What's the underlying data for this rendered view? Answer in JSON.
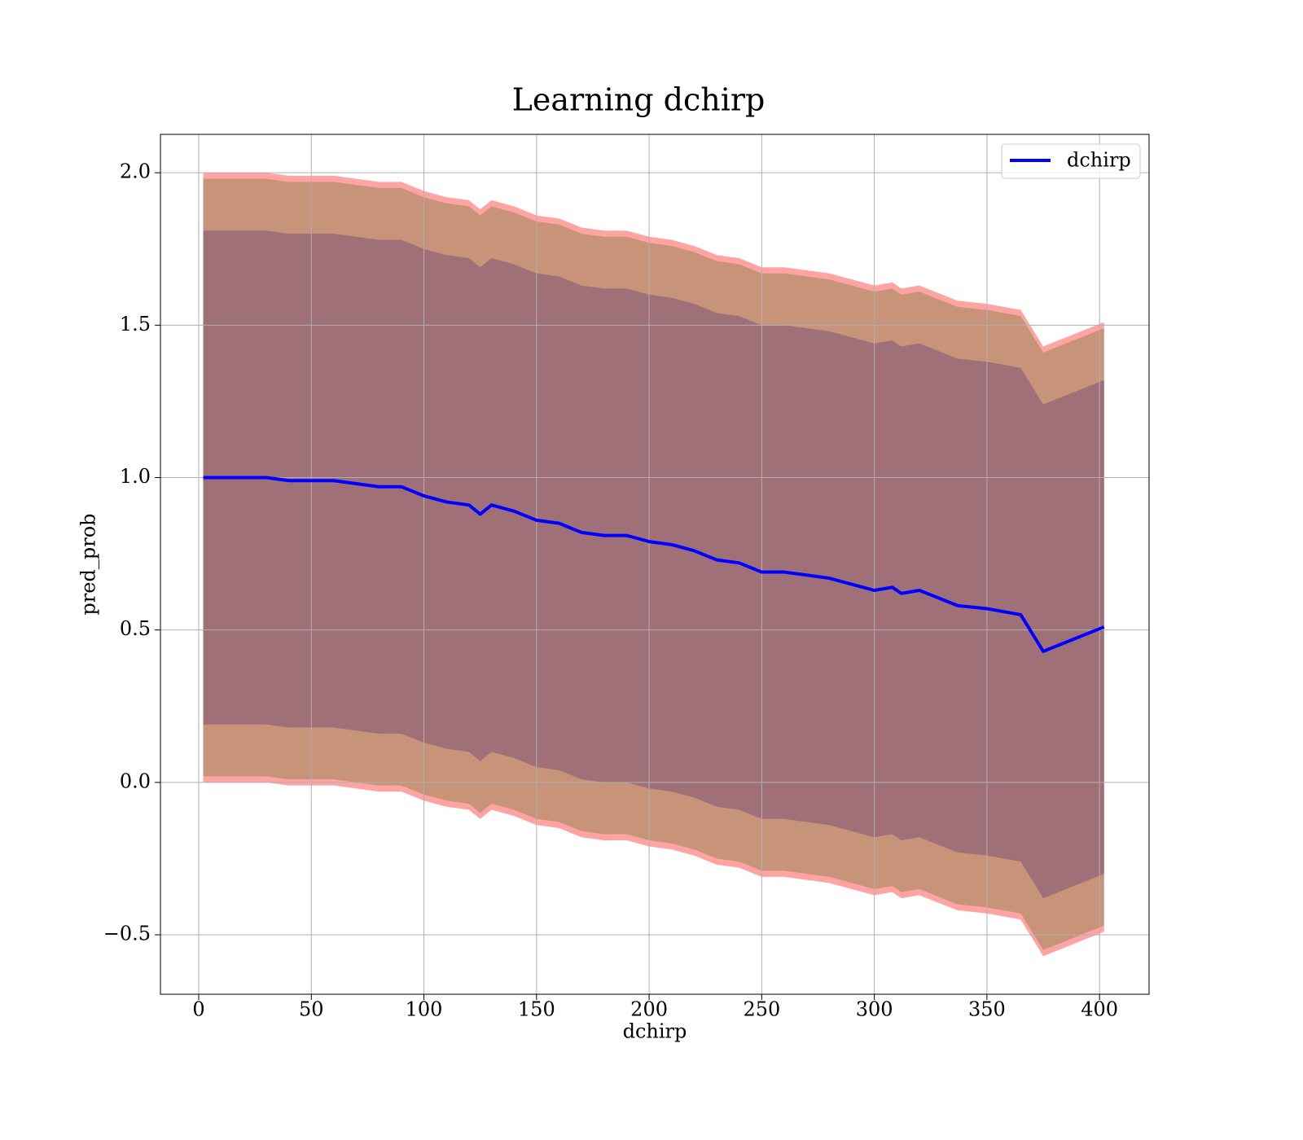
{
  "chart_data": {
    "type": "line",
    "title": "Learning dchirp",
    "xlabel": "dchirp",
    "ylabel": "pred_prob",
    "x": [
      2,
      10,
      20,
      30,
      40,
      50,
      60,
      70,
      80,
      90,
      100,
      110,
      120,
      125,
      130,
      140,
      150,
      160,
      170,
      180,
      190,
      200,
      210,
      220,
      230,
      240,
      250,
      260,
      270,
      280,
      290,
      300,
      308,
      312,
      320,
      337,
      350,
      365,
      375,
      402
    ],
    "series": [
      {
        "name": "dchirp",
        "color": "#0000ff",
        "values": [
          1.0,
          1.0,
          1.0,
          1.0,
          0.99,
          0.99,
          0.99,
          0.98,
          0.97,
          0.97,
          0.94,
          0.92,
          0.91,
          0.88,
          0.91,
          0.89,
          0.86,
          0.85,
          0.82,
          0.81,
          0.81,
          0.79,
          0.78,
          0.76,
          0.73,
          0.72,
          0.69,
          0.69,
          0.68,
          0.67,
          0.65,
          0.63,
          0.64,
          0.62,
          0.63,
          0.58,
          0.57,
          0.55,
          0.43,
          0.51
        ]
      }
    ],
    "bands": [
      {
        "color": "#ffa3a3",
        "upper": [
          2.0,
          2.0,
          2.0,
          2.0,
          1.99,
          1.99,
          1.99,
          1.98,
          1.97,
          1.97,
          1.94,
          1.92,
          1.91,
          1.88,
          1.91,
          1.89,
          1.86,
          1.85,
          1.82,
          1.81,
          1.81,
          1.79,
          1.78,
          1.76,
          1.73,
          1.72,
          1.69,
          1.69,
          1.68,
          1.67,
          1.65,
          1.63,
          1.64,
          1.62,
          1.63,
          1.58,
          1.57,
          1.55,
          1.43,
          1.51
        ],
        "lower": [
          0.0,
          0.0,
          0.0,
          0.0,
          -0.01,
          -0.01,
          -0.01,
          -0.02,
          -0.03,
          -0.03,
          -0.06,
          -0.08,
          -0.09,
          -0.12,
          -0.09,
          -0.11,
          -0.14,
          -0.15,
          -0.18,
          -0.19,
          -0.19,
          -0.21,
          -0.22,
          -0.24,
          -0.27,
          -0.28,
          -0.31,
          -0.31,
          -0.32,
          -0.33,
          -0.35,
          -0.37,
          -0.36,
          -0.38,
          -0.37,
          -0.42,
          -0.43,
          -0.45,
          -0.57,
          -0.49
        ]
      },
      {
        "color": "#c79479",
        "upper": [
          1.98,
          1.98,
          1.98,
          1.98,
          1.97,
          1.97,
          1.97,
          1.96,
          1.95,
          1.95,
          1.92,
          1.9,
          1.89,
          1.86,
          1.89,
          1.87,
          1.84,
          1.83,
          1.8,
          1.79,
          1.79,
          1.77,
          1.76,
          1.74,
          1.71,
          1.7,
          1.67,
          1.67,
          1.66,
          1.65,
          1.63,
          1.61,
          1.62,
          1.6,
          1.61,
          1.56,
          1.55,
          1.53,
          1.41,
          1.49
        ],
        "lower": [
          0.02,
          0.02,
          0.02,
          0.02,
          0.01,
          0.01,
          0.01,
          0.0,
          -0.01,
          -0.01,
          -0.04,
          -0.06,
          -0.07,
          -0.1,
          -0.07,
          -0.09,
          -0.12,
          -0.13,
          -0.16,
          -0.17,
          -0.17,
          -0.19,
          -0.2,
          -0.22,
          -0.25,
          -0.26,
          -0.29,
          -0.29,
          -0.3,
          -0.31,
          -0.33,
          -0.35,
          -0.34,
          -0.36,
          -0.35,
          -0.4,
          -0.41,
          -0.43,
          -0.55,
          -0.47
        ]
      },
      {
        "color": "#a07079",
        "upper": [
          1.81,
          1.81,
          1.81,
          1.81,
          1.8,
          1.8,
          1.8,
          1.79,
          1.78,
          1.78,
          1.75,
          1.73,
          1.72,
          1.69,
          1.72,
          1.7,
          1.67,
          1.66,
          1.63,
          1.62,
          1.62,
          1.6,
          1.59,
          1.57,
          1.54,
          1.53,
          1.5,
          1.5,
          1.49,
          1.48,
          1.46,
          1.44,
          1.45,
          1.43,
          1.44,
          1.39,
          1.38,
          1.36,
          1.24,
          1.32
        ],
        "lower": [
          0.19,
          0.19,
          0.19,
          0.19,
          0.18,
          0.18,
          0.18,
          0.17,
          0.16,
          0.16,
          0.13,
          0.11,
          0.1,
          0.07,
          0.1,
          0.08,
          0.05,
          0.04,
          0.01,
          0.0,
          0.0,
          -0.02,
          -0.03,
          -0.05,
          -0.08,
          -0.09,
          -0.12,
          -0.12,
          -0.13,
          -0.14,
          -0.16,
          -0.18,
          -0.17,
          -0.19,
          -0.18,
          -0.23,
          -0.24,
          -0.26,
          -0.38,
          -0.3
        ]
      }
    ],
    "xlim": [
      -17,
      422
    ],
    "ylim": [
      -0.695,
      2.126
    ],
    "xticks": [
      0,
      50,
      100,
      150,
      200,
      250,
      300,
      350,
      400
    ],
    "yticks": [
      {
        "value": -0.5,
        "label": "−0.5"
      },
      {
        "value": 0.0,
        "label": "0.0"
      },
      0.5,
      {
        "value": 1.0,
        "label": "1.0"
      },
      1.5,
      {
        "value": 2.0,
        "label": "2.0"
      }
    ],
    "grid": true,
    "legend": "upper right"
  }
}
